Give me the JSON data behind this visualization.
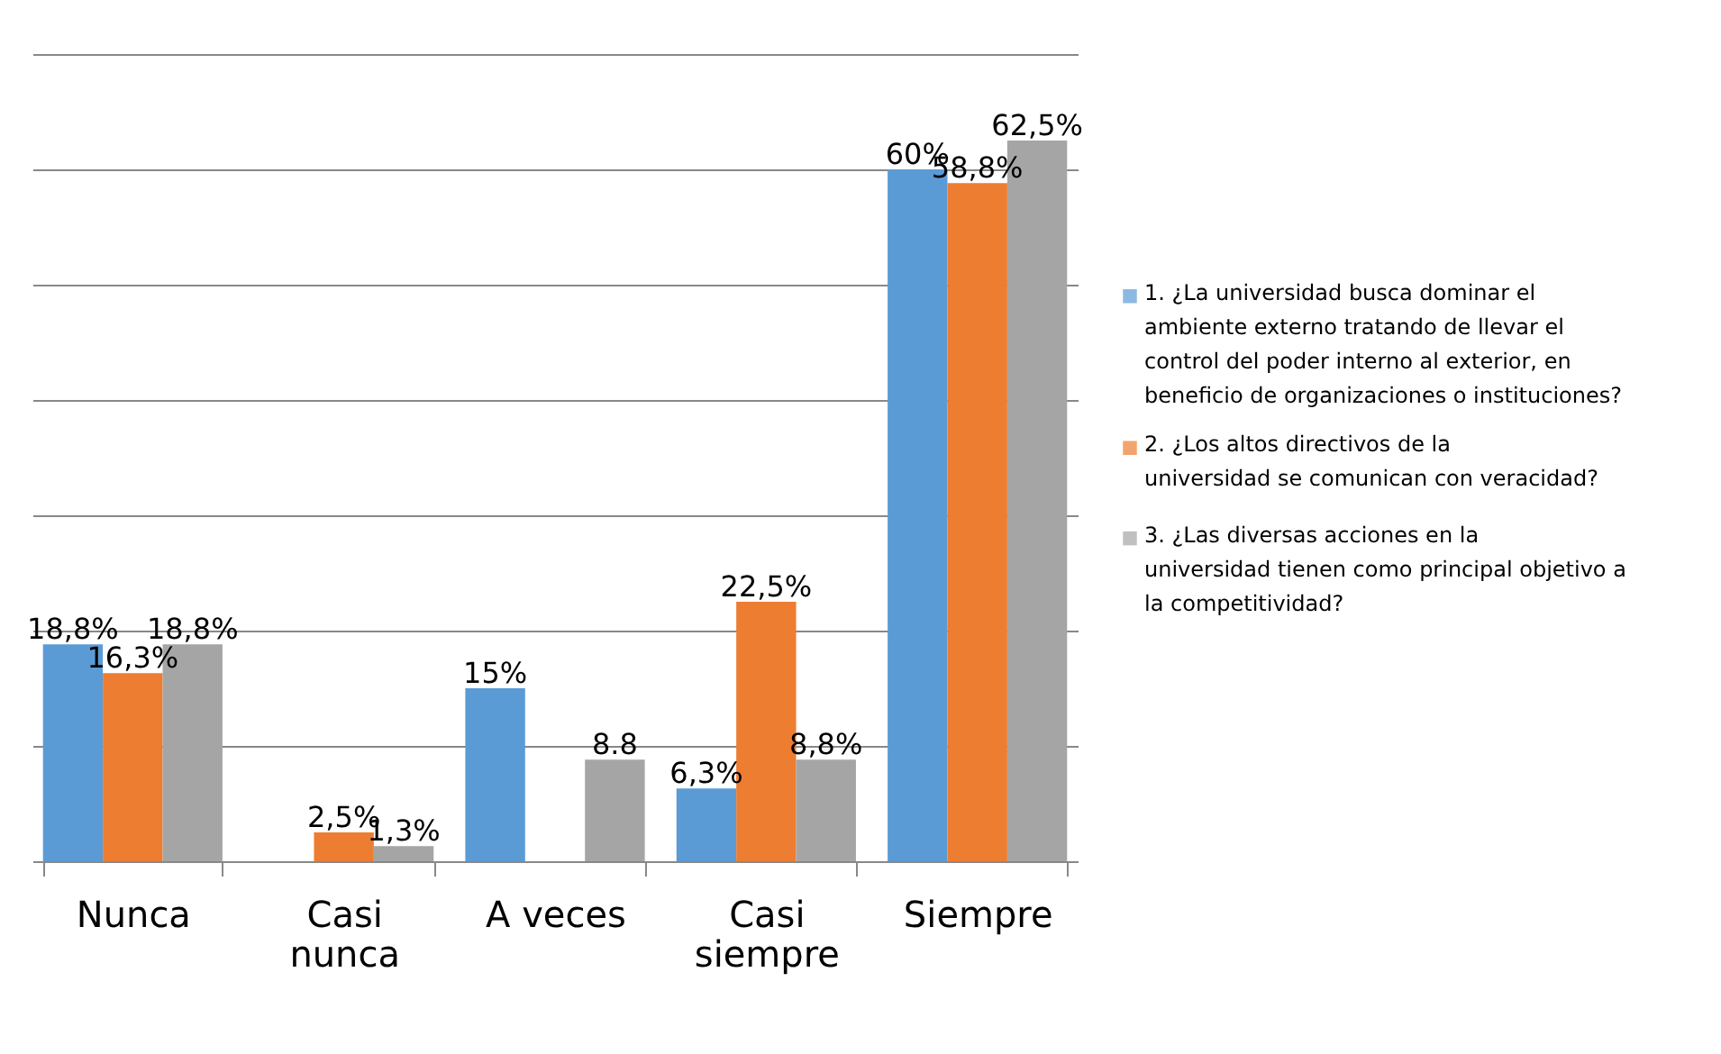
{
  "chart_data": {
    "type": "bar",
    "categories": [
      "Nunca",
      "Casi nunca",
      "A veces",
      "Casi siempre",
      "Siempre"
    ],
    "series": [
      {
        "name": "1.     ¿La universidad busca dominar el ambiente externo tratando de llevar el control del poder interno al exterior, en beneficio de organizaciones o instituciones?",
        "color": "#5b9bd5",
        "values": [
          18.8,
          0,
          15,
          6.3,
          60
        ],
        "value_labels": [
          "18,8%",
          null,
          "15%",
          "6,3%",
          "60%"
        ]
      },
      {
        "name": "2.     ¿Los altos directivos de la universidad se comunican con veracidad?",
        "color": "#ed7d31",
        "values": [
          16.3,
          2.5,
          0,
          22.5,
          58.8
        ],
        "value_labels": [
          "16,3%",
          "2,5%",
          null,
          "22,5%",
          "58,8%"
        ]
      },
      {
        "name": "3.     ¿Las diversas acciones en la universidad tienen como principal objetivo a la competitividad?",
        "color": "#a5a5a5",
        "values": [
          18.8,
          1.3,
          8.8,
          8.8,
          62.5
        ],
        "value_labels": [
          "18,8%",
          "1,3%",
          "8.8",
          "8,8%",
          "62,5%"
        ]
      }
    ],
    "ylim": [
      0,
      70
    ],
    "yticks": [
      {
        "value": 0,
        "label": null
      },
      {
        "value": 10,
        "label": null
      },
      {
        "value": 20,
        "label": null
      },
      {
        "value": 30,
        "label": null
      },
      {
        "value": 40,
        "label": null
      },
      {
        "value": 50,
        "label": null
      },
      {
        "value": 60,
        "label": null
      },
      {
        "value": 70,
        "label": null
      }
    ],
    "tick_labels": "x",
    "grid": "y",
    "legend": "right"
  }
}
